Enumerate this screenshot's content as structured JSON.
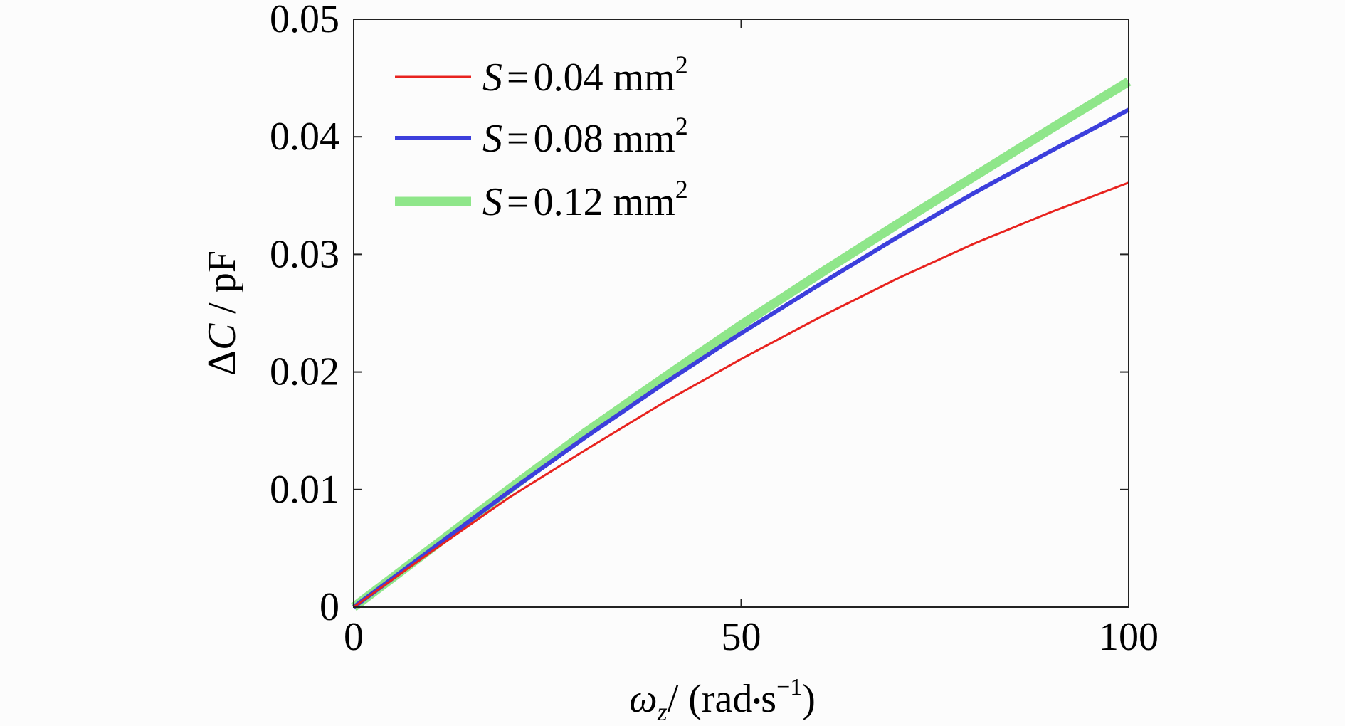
{
  "chart_data": {
    "type": "line",
    "title": "",
    "xlabel": {
      "symbol": "ω",
      "subscript": "z",
      "unit_open": "/ (rad",
      "dot": "•",
      "unit_s": "s",
      "exponent": "−1",
      "unit_close": ")"
    },
    "ylabel": {
      "delta": "Δ",
      "symbol": "C",
      "unit": " / pF"
    },
    "xlim": [
      0,
      100
    ],
    "ylim": [
      0,
      0.05
    ],
    "xticks": [
      0,
      50,
      100
    ],
    "xtick_labels": [
      "0",
      "50",
      "100"
    ],
    "yticks": [
      0,
      0.01,
      0.02,
      0.03,
      0.04,
      0.05
    ],
    "ytick_labels": [
      "0",
      "0.01",
      "0.02",
      "0.03",
      "0.04",
      "0.05"
    ],
    "grid": false,
    "legend_position": "top-left",
    "x": [
      0,
      10,
      20,
      30,
      40,
      50,
      60,
      70,
      80,
      90,
      100
    ],
    "series": [
      {
        "name": "S = 0.04 mm2",
        "label_var": "S",
        "label_eq": "=",
        "label_value": "0.04 mm",
        "label_exp": "2",
        "color": "#e8231f",
        "values": [
          0,
          0.0047,
          0.0093,
          0.0134,
          0.0174,
          0.0211,
          0.0246,
          0.0279,
          0.0309,
          0.0336,
          0.0361
        ]
      },
      {
        "name": "S = 0.08 mm2",
        "label_var": "S",
        "label_eq": "=",
        "label_value": "0.08 mm",
        "label_exp": "2",
        "color": "#3c3fdc",
        "values": [
          0,
          0.0049,
          0.0098,
          0.0145,
          0.019,
          0.0233,
          0.0274,
          0.0314,
          0.0352,
          0.0388,
          0.0423
        ]
      },
      {
        "name": "S = 0.12 mm2",
        "label_var": "S",
        "label_eq": "=",
        "label_value": "0.12 mm",
        "label_exp": "2",
        "color": "#8fe68a",
        "values": [
          0,
          0.005,
          0.01,
          0.0149,
          0.0195,
          0.024,
          0.0283,
          0.0325,
          0.0366,
          0.0407,
          0.0447
        ]
      }
    ]
  }
}
